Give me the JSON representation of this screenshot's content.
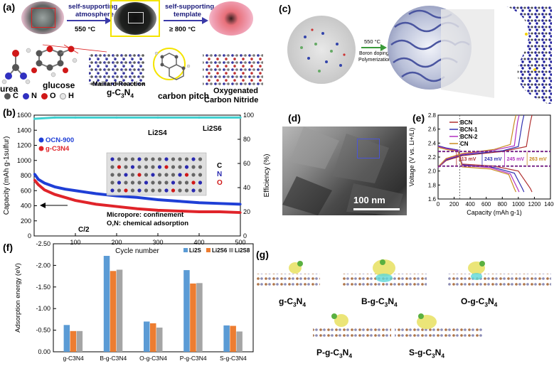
{
  "panel_a": {
    "label": "(a)",
    "step1_line1": "self-supporting",
    "step1_line2": "atmosphere",
    "step1_temp": "550 °C",
    "step2_line1": "self-supporting",
    "step2_line2": "template",
    "step2_temp": "≥ 800 °C",
    "urea": "urea",
    "glucose": "glucose",
    "legend_c": "C",
    "legend_n": "N",
    "legend_o": "O",
    "legend_h": "H",
    "maillard": "Maillard Reaction",
    "gcn": "g-C3N4",
    "carbon_pitch": "carbon pitch",
    "product_line1": "Oxygenated",
    "product_line2": "Carbon Nitride"
  },
  "panel_c": {
    "label": "(c)",
    "arrow_temp": "550 °C",
    "arrow_line1": "Boron doping",
    "arrow_line2": "Polymerization"
  },
  "panel_d": {
    "label": "(d)",
    "scale": "100 nm"
  },
  "panel_g": {
    "label": "(g)",
    "names": [
      "g-C3N4",
      "B-g-C3N4",
      "O-g-C3N4",
      "P-g-C3N4",
      "S-g-C3N4"
    ]
  },
  "colors": {
    "ocn": "#1f3fd6",
    "gcn": "#e0242a",
    "efficiency": "#3fd0d0",
    "bcn": "#b03030",
    "bcn1": "#3030b0",
    "bcn2": "#b030c0",
    "cn": "#c88a20",
    "li2s": "#5b9bd5",
    "li2s6": "#ed7d31",
    "li2s8": "#a5a5a5"
  },
  "chart_data": [
    {
      "panel": "(b)",
      "type": "line",
      "xlabel": "Cycle number",
      "ylabel": "Capacity (mAh g-1sulfur)",
      "ylabel2": "Efficiency (%)",
      "xlim": [
        0,
        500
      ],
      "ylim": [
        0,
        1600
      ],
      "ylim2": [
        0,
        100
      ],
      "xticks": [
        100,
        200,
        300,
        400,
        500
      ],
      "yticks": [
        0,
        200,
        400,
        600,
        800,
        1000,
        1200,
        1400,
        1600
      ],
      "y2ticks": [
        0,
        20,
        40,
        60,
        80,
        100
      ],
      "rate": "C/2",
      "annot_micropore": "Micropore: confinement",
      "annot_on": "O,N: chemical adsorption",
      "annot_li2s4": "Li2S4",
      "annot_li2s6": "Li2S6",
      "atom_c": "C",
      "atom_n": "N",
      "atom_o": "O",
      "series": [
        {
          "name": "OCN-900",
          "x": [
            1,
            10,
            25,
            50,
            75,
            100,
            150,
            200,
            250,
            300,
            350,
            400,
            450,
            500
          ],
          "values": [
            820,
            750,
            700,
            650,
            620,
            600,
            560,
            530,
            510,
            480,
            460,
            440,
            430,
            420
          ]
        },
        {
          "name": "g-C3N4",
          "x": [
            1,
            10,
            25,
            50,
            75,
            100,
            150,
            200,
            250,
            300,
            350,
            400,
            450,
            500
          ],
          "values": [
            740,
            680,
            610,
            550,
            510,
            470,
            420,
            390,
            360,
            340,
            330,
            320,
            320,
            310
          ]
        },
        {
          "name": "Efficiency",
          "axis": "right",
          "x": [
            1,
            50,
            100,
            200,
            300,
            400,
            500
          ],
          "values": [
            97,
            98,
            98,
            98,
            98,
            98,
            98
          ]
        }
      ]
    },
    {
      "panel": "(e)",
      "type": "line",
      "xlabel": "Capacity (mAh g-1)",
      "ylabel": "Voltage (V vs. Li+/Li)",
      "xlim": [
        0,
        1400
      ],
      "ylim": [
        1.6,
        2.8
      ],
      "xticks": [
        0,
        200,
        400,
        600,
        800,
        1000,
        1200,
        1400
      ],
      "yticks": [
        1.6,
        1.8,
        2.0,
        2.2,
        2.4,
        2.6,
        2.8
      ],
      "annotations": [
        "213 mV",
        "243 mV",
        "245 mV",
        "263 mV"
      ],
      "series": [
        {
          "name": "BCN",
          "charge": [
            [
              0,
              2.05
            ],
            [
              100,
              2.15
            ],
            [
              300,
              2.22
            ],
            [
              800,
              2.28
            ],
            [
              1100,
              2.35
            ],
            [
              1150,
              2.7
            ],
            [
              1170,
              2.8
            ]
          ],
          "discharge": [
            [
              0,
              2.36
            ],
            [
              100,
              2.33
            ],
            [
              250,
              2.3
            ],
            [
              300,
              2.1
            ],
            [
              700,
              2.07
            ],
            [
              1000,
              2.0
            ],
            [
              1150,
              1.75
            ],
            [
              1170,
              1.7
            ]
          ]
        },
        {
          "name": "BCN-1",
          "charge": [
            [
              0,
              2.05
            ],
            [
              100,
              2.16
            ],
            [
              300,
              2.23
            ],
            [
              800,
              2.29
            ],
            [
              1000,
              2.35
            ],
            [
              1050,
              2.7
            ],
            [
              1070,
              2.8
            ]
          ],
          "discharge": [
            [
              0,
              2.36
            ],
            [
              100,
              2.33
            ],
            [
              250,
              2.3
            ],
            [
              300,
              2.09
            ],
            [
              700,
              2.05
            ],
            [
              950,
              1.97
            ],
            [
              1050,
              1.75
            ],
            [
              1070,
              1.7
            ]
          ]
        },
        {
          "name": "BCN-2",
          "charge": [
            [
              0,
              2.05
            ],
            [
              100,
              2.17
            ],
            [
              300,
              2.24
            ],
            [
              700,
              2.3
            ],
            [
              950,
              2.36
            ],
            [
              990,
              2.7
            ],
            [
              1010,
              2.8
            ]
          ],
          "discharge": [
            [
              0,
              2.35
            ],
            [
              100,
              2.32
            ],
            [
              250,
              2.29
            ],
            [
              300,
              2.08
            ],
            [
              650,
              2.05
            ],
            [
              900,
              1.96
            ],
            [
              990,
              1.75
            ],
            [
              1010,
              1.7
            ]
          ]
        },
        {
          "name": "CN",
          "charge": [
            [
              0,
              2.06
            ],
            [
              100,
              2.18
            ],
            [
              300,
              2.25
            ],
            [
              700,
              2.31
            ],
            [
              900,
              2.38
            ],
            [
              950,
              2.7
            ],
            [
              970,
              2.8
            ]
          ],
          "discharge": [
            [
              0,
              2.34
            ],
            [
              100,
              2.31
            ],
            [
              250,
              2.28
            ],
            [
              300,
              2.06
            ],
            [
              650,
              2.03
            ],
            [
              880,
              1.95
            ],
            [
              950,
              1.75
            ],
            [
              970,
              1.7
            ]
          ]
        }
      ]
    },
    {
      "panel": "(f)",
      "type": "bar",
      "ylabel": "Adsorption energy (eV)",
      "categories": [
        "g-C3N4",
        "B-g-C3N4",
        "O-g-C3N4",
        "P-g-C3N4",
        "S-g-C3N4"
      ],
      "ylim": [
        0,
        -2.5
      ],
      "yticks": [
        "-2.50",
        "-2.00",
        "-1.50",
        "-1.00",
        "-0.50",
        "0.00"
      ],
      "series": [
        {
          "name": "Li2S",
          "values": [
            -0.62,
            -2.22,
            -0.7,
            -1.89,
            -0.61
          ]
        },
        {
          "name": "Li2S6",
          "values": [
            -0.48,
            -1.87,
            -0.66,
            -1.58,
            -0.6
          ]
        },
        {
          "name": "Li2S8",
          "values": [
            -0.48,
            -1.9,
            -0.56,
            -1.59,
            -0.47
          ]
        }
      ]
    }
  ]
}
